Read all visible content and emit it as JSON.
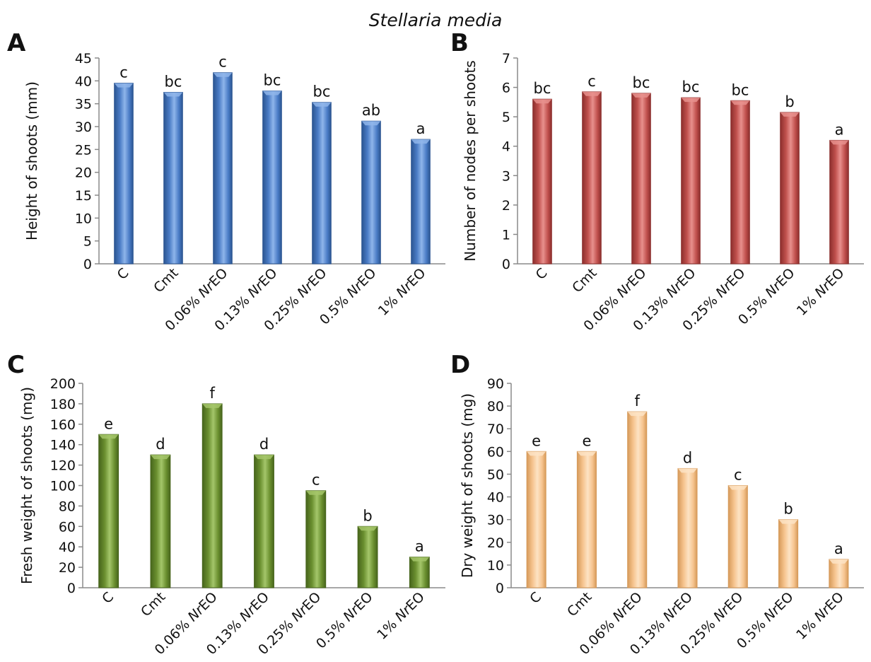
{
  "figure_title": "Stellaria media",
  "chart_data": [
    {
      "panel": "A",
      "type": "bar",
      "categories": [
        "C",
        "Cmt",
        "0.06% NrEO",
        "0.13% NrEO",
        "0.25% NrEO",
        "0.5% NrEO",
        "1% NrEO"
      ],
      "values": [
        39.5,
        37.5,
        41.8,
        37.8,
        35.3,
        31.2,
        27.2
      ],
      "letters": [
        "c",
        "bc",
        "c",
        "bc",
        "bc",
        "ab",
        "a"
      ],
      "ylabel": "Height of shoots (mm)",
      "xlabel": "",
      "ylim": [
        0,
        45
      ],
      "yticks": [
        0,
        5,
        10,
        15,
        20,
        25,
        30,
        35,
        40,
        45
      ],
      "color": "#4a7cc6",
      "color_dark": "#2b5591",
      "color_light": "#8fb5ea"
    },
    {
      "panel": "B",
      "type": "bar",
      "categories": [
        "C",
        "Cmt",
        "0.06% NrEO",
        "0.13% NrEO",
        "0.25% NrEO",
        "0.5% NrEO",
        "1% NrEO"
      ],
      "values": [
        5.6,
        5.85,
        5.8,
        5.65,
        5.55,
        5.15,
        4.2
      ],
      "letters": [
        "bc",
        "c",
        "bc",
        "bc",
        "bc",
        "b",
        "a"
      ],
      "ylabel": "Number of nodes per shoots",
      "xlabel": "",
      "ylim": [
        0,
        7
      ],
      "yticks": [
        0,
        1,
        2,
        3,
        4,
        5,
        6,
        7
      ],
      "color": "#c0504d",
      "color_dark": "#8c2f2d",
      "color_light": "#e8908d"
    },
    {
      "panel": "C",
      "type": "bar",
      "categories": [
        "C",
        "Cmt",
        "0.06% NrEO",
        "0.13% NrEO",
        "0.25% NrEO",
        "0.5% NrEO",
        "1% NrEO"
      ],
      "values": [
        150,
        130,
        180,
        130,
        95,
        60,
        30
      ],
      "letters": [
        "e",
        "d",
        "f",
        "d",
        "c",
        "b",
        "a"
      ],
      "ylabel": "Fresh weight of shoots (mg)",
      "xlabel": "",
      "ylim": [
        0,
        200
      ],
      "yticks": [
        0,
        20,
        40,
        60,
        80,
        100,
        120,
        140,
        160,
        180,
        200
      ],
      "color": "#6a8f2f",
      "color_dark": "#47651c",
      "color_light": "#a4c66a"
    },
    {
      "panel": "D",
      "type": "bar",
      "categories": [
        "C",
        "Cmt",
        "0.06% NrEO",
        "0.13% NrEO",
        "0.25% NrEO",
        "0.5% NrEO",
        "1% NrEO"
      ],
      "values": [
        60,
        60,
        77.5,
        52.5,
        45,
        30,
        12.5
      ],
      "letters": [
        "e",
        "e",
        "f",
        "d",
        "c",
        "b",
        "a"
      ],
      "ylabel": "Dry weight of shoots (mg)",
      "xlabel": "",
      "ylim": [
        0,
        90
      ],
      "yticks": [
        0,
        10,
        20,
        30,
        40,
        50,
        60,
        70,
        80,
        90
      ],
      "color": "#f6c48f",
      "color_dark": "#d69a5a",
      "color_light": "#fde3c4"
    }
  ]
}
